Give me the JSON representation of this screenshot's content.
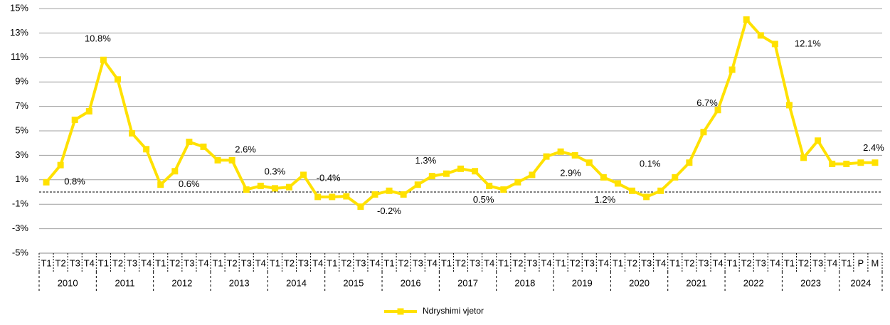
{
  "chart_data": {
    "type": "line",
    "categories": [
      "T1",
      "T2",
      "T3",
      "T4",
      "T1",
      "T2",
      "T3",
      "T4",
      "T1",
      "T2",
      "T3",
      "T4",
      "T1",
      "T2",
      "T3",
      "T4",
      "T1",
      "T2",
      "T3",
      "T4",
      "T1",
      "T2",
      "T3",
      "T4",
      "T1",
      "T2",
      "T3",
      "T4",
      "T1",
      "T2",
      "T3",
      "T4",
      "T1",
      "T2",
      "T3",
      "T4",
      "T1",
      "T2",
      "T3",
      "T4",
      "T1",
      "T2",
      "T3",
      "T4",
      "T1",
      "T2",
      "T3",
      "T4",
      "T1",
      "T2",
      "T3",
      "T4",
      "T1",
      "T2",
      "T3",
      "T4",
      "T1",
      "P",
      "M"
    ],
    "years": [
      "2010",
      "2011",
      "2012",
      "2013",
      "2014",
      "2015",
      "2016",
      "2017",
      "2018",
      "2019",
      "2020",
      "2021",
      "2022",
      "2023",
      "2024"
    ],
    "series": [
      {
        "name": "Ndryshimi vjetor",
        "color": "#FFE100",
        "values": [
          0.8,
          2.2,
          5.9,
          6.6,
          10.8,
          9.2,
          4.8,
          3.5,
          0.6,
          1.7,
          4.1,
          3.7,
          2.6,
          2.6,
          0.2,
          0.5,
          0.3,
          0.4,
          1.4,
          -0.4,
          -0.4,
          -0.35,
          -1.2,
          -0.2,
          0.1,
          -0.2,
          0.6,
          1.3,
          1.5,
          1.9,
          1.7,
          0.5,
          0.2,
          0.8,
          1.4,
          2.9,
          3.3,
          3.0,
          2.4,
          1.2,
          0.7,
          0.1,
          -0.4,
          0.1,
          1.2,
          2.4,
          4.9,
          6.7,
          10.0,
          14.1,
          12.8,
          12.1,
          7.1,
          2.8,
          4.2,
          2.3,
          2.3,
          2.4,
          2.4
        ],
        "value_labels": [
          "0.8%",
          null,
          null,
          null,
          "10.8%",
          null,
          null,
          null,
          "0.6%",
          null,
          null,
          null,
          "2.6%",
          null,
          null,
          null,
          "0.3%",
          null,
          null,
          "-0.4%",
          null,
          null,
          null,
          "-0.2%",
          null,
          null,
          null,
          "1.3%",
          null,
          null,
          null,
          "0.5%",
          null,
          null,
          null,
          "2.9%",
          null,
          null,
          null,
          "1.2%",
          null,
          null,
          null,
          "0.1%",
          null,
          null,
          null,
          "6.7%",
          null,
          null,
          null,
          "12.1%",
          null,
          null,
          null,
          null,
          null,
          null,
          "2.4%"
        ]
      }
    ],
    "ylim": [
      -5,
      15
    ],
    "yticks": [
      {
        "value": -5,
        "label": "-5%"
      },
      {
        "value": -3,
        "label": "-3%"
      },
      {
        "value": -1,
        "label": "-1%"
      },
      {
        "value": 1,
        "label": "1%"
      },
      {
        "value": 3,
        "label": "3%"
      },
      {
        "value": 5,
        "label": "5%"
      },
      {
        "value": 7,
        "label": "7%"
      },
      {
        "value": 9,
        "label": "9%"
      },
      {
        "value": 11,
        "label": "11%"
      },
      {
        "value": 13,
        "label": "13%"
      },
      {
        "value": 15,
        "label": "15%"
      }
    ],
    "grid": true,
    "legend": "bottom"
  }
}
